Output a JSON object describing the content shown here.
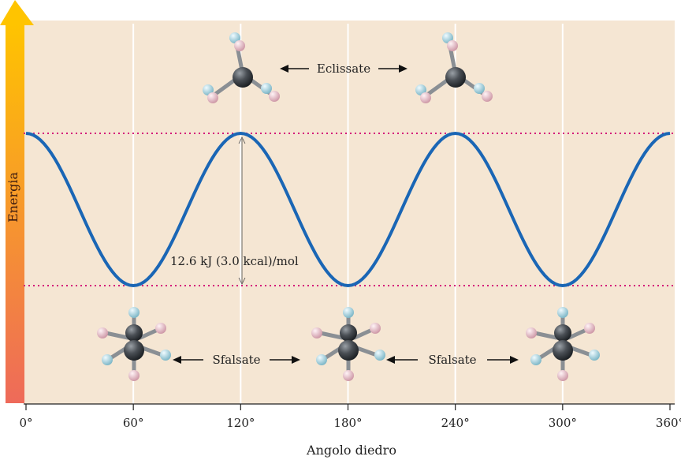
{
  "chart_data": {
    "type": "line",
    "title": "",
    "xlabel": "Angolo diedro",
    "ylabel": "Energia",
    "xlim": [
      0,
      360
    ],
    "x_ticks": [
      "0°",
      "60°",
      "120°",
      "180°",
      "240°",
      "300°",
      "360°"
    ],
    "x_tick_values": [
      0,
      60,
      120,
      180,
      240,
      300,
      360
    ],
    "grid": "vertical",
    "y_range_kj": [
      0,
      12.6
    ],
    "series": [
      {
        "curve": "E = 6.3 * (1 + cos(3θ))",
        "color": "#1a66b5",
        "x": [
          0,
          15,
          30,
          45,
          60,
          75,
          90,
          105,
          120,
          135,
          150,
          165,
          180,
          195,
          210,
          225,
          240,
          255,
          270,
          285,
          300,
          315,
          330,
          345,
          360
        ],
        "y": [
          12.6,
          10.75,
          6.3,
          1.85,
          0,
          1.85,
          6.3,
          10.75,
          12.6,
          10.75,
          6.3,
          1.85,
          0,
          1.85,
          6.3,
          10.75,
          12.6,
          10.75,
          6.3,
          1.85,
          0,
          1.85,
          6.3,
          10.75,
          12.6
        ]
      }
    ],
    "reference_lines": [
      {
        "y": 12.6,
        "style": "dotted",
        "color": "#d4187a"
      },
      {
        "y": 0,
        "style": "dotted",
        "color": "#d4187a"
      }
    ],
    "annotations": {
      "barrier": "12.6 kJ (3.0 kcal)/mol",
      "eclipsed": "Eclissate",
      "staggered_left": "Sfalsate",
      "staggered_right": "Sfalsate"
    },
    "colors": {
      "background": "#f5e6d3",
      "energy_arrow_top": "#ffc400",
      "energy_arrow_bottom": "#ee6a5a",
      "carbon": "#4a4f55",
      "hydrogen_blue": "#a5d3e0",
      "hydrogen_pink": "#edc2cd"
    }
  }
}
